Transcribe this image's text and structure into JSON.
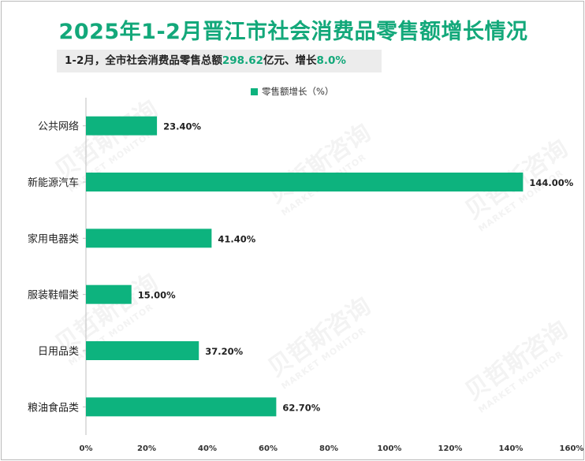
{
  "title": "2025年1-2月晋江市社会消费品零售额增长情况",
  "summary": {
    "prefix": "1-2月，全市社会消费品零售总额",
    "amount": "298.62",
    "middle": "亿元、增长",
    "growth": "8.0%"
  },
  "legend": {
    "label": "零售额增长（%）"
  },
  "colors": {
    "bar": "#0db37e",
    "title": "#13a87a",
    "axis": "#bfbfbf"
  },
  "chart_data": {
    "type": "bar",
    "orientation": "horizontal",
    "title": "2025年1-2月晋江市社会消费品零售额增长情况",
    "categories": [
      "公共网络",
      "新能源汽车",
      "家用电器类",
      "服装鞋帽类",
      "日用品类",
      "粮油食品类"
    ],
    "series": [
      {
        "name": "零售额增长（%）",
        "values": [
          23.4,
          144.0,
          41.4,
          15.0,
          37.2,
          62.7
        ]
      }
    ],
    "data_labels": [
      "23.40%",
      "144.00%",
      "41.40%",
      "15.00%",
      "37.20%",
      "62.70%"
    ],
    "xlim": [
      0,
      160
    ],
    "x_ticks": [
      0,
      20,
      40,
      60,
      80,
      100,
      120,
      140,
      160
    ],
    "x_tick_labels": [
      "0%",
      "20%",
      "40%",
      "60%",
      "80%",
      "100%",
      "120%",
      "140%",
      "160%"
    ],
    "xlabel": "",
    "ylabel": "",
    "legend_position": "top-center"
  }
}
